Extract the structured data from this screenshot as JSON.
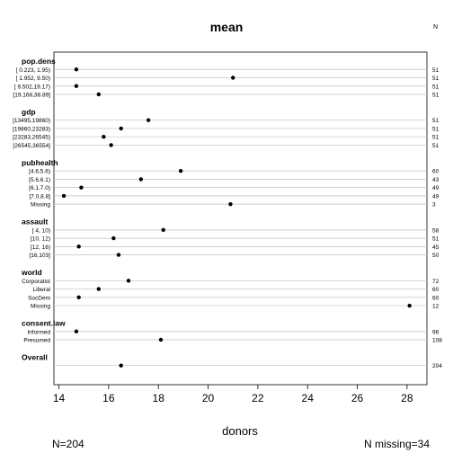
{
  "chart_data": {
    "type": "dot",
    "title": "mean",
    "xlabel": "donors",
    "n_header": "N",
    "footer_left": "N=204",
    "footer_right": "N missing=34",
    "xlim": [
      13.8,
      28.8
    ],
    "xticks": [
      14,
      16,
      18,
      20,
      22,
      24,
      26,
      28
    ],
    "grid": "horizontal reference line per row",
    "groups": [
      {
        "name": "pop.dens",
        "rows": [
          {
            "label": "[ 0.223, 1.95)",
            "value": 14.7,
            "n": "51"
          },
          {
            "label": "[ 1.952, 9.50)",
            "value": 21.0,
            "n": "51"
          },
          {
            "label": "[ 9.502,19.17)",
            "value": 14.7,
            "n": "51"
          },
          {
            "label": "[19.168,38.89]",
            "value": 15.6,
            "n": "51"
          }
        ]
      },
      {
        "name": "gdp",
        "rows": [
          {
            "label": "[13495,19860)",
            "value": 17.6,
            "n": "51"
          },
          {
            "label": "[19860,23283)",
            "value": 16.5,
            "n": "51"
          },
          {
            "label": "[23283,26545)",
            "value": 15.8,
            "n": "51"
          },
          {
            "label": "[26545,36554]",
            "value": 16.1,
            "n": "51"
          }
        ]
      },
      {
        "name": "pubhealth",
        "rows": [
          {
            "label": "[4.6,5.6)",
            "value": 18.9,
            "n": "60"
          },
          {
            "label": "[5.6,6.1)",
            "value": 17.3,
            "n": "43"
          },
          {
            "label": "[6.1,7.0)",
            "value": 14.9,
            "n": "49"
          },
          {
            "label": "[7.0,8.8]",
            "value": 14.2,
            "n": "49"
          },
          {
            "label": "Missing",
            "value": 20.9,
            "n": "3"
          }
        ]
      },
      {
        "name": "assault",
        "rows": [
          {
            "label": "[ 4, 10)",
            "value": 18.2,
            "n": "58"
          },
          {
            "label": "[10, 12)",
            "value": 16.2,
            "n": "51"
          },
          {
            "label": "[12, 16)",
            "value": 14.8,
            "n": "45"
          },
          {
            "label": "[16,103]",
            "value": 16.4,
            "n": "50"
          }
        ]
      },
      {
        "name": "world",
        "rows": [
          {
            "label": "Corporatist",
            "value": 16.8,
            "n": "72"
          },
          {
            "label": "Liberal",
            "value": 15.6,
            "n": "60"
          },
          {
            "label": "SocDem",
            "value": 14.8,
            "n": "60"
          },
          {
            "label": "Missing",
            "value": 28.1,
            "n": "12"
          }
        ]
      },
      {
        "name": "consent.law",
        "rows": [
          {
            "label": "Informed",
            "value": 14.7,
            "n": "96"
          },
          {
            "label": "Presumed",
            "value": 18.1,
            "n": "108"
          }
        ]
      },
      {
        "name": "Overall",
        "rows": [
          {
            "label": "",
            "value": 16.5,
            "n": "204"
          }
        ]
      }
    ]
  }
}
